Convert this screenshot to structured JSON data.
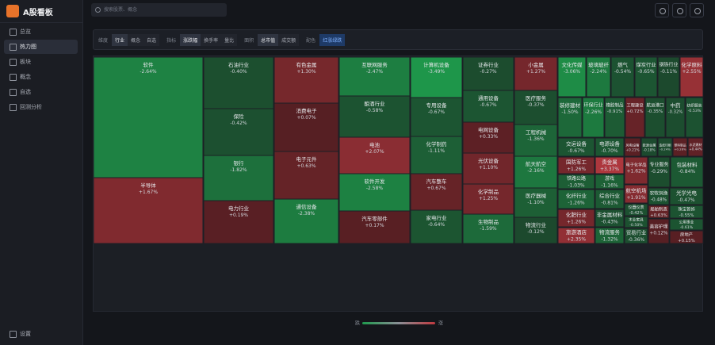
{
  "app": {
    "title": "A股看板"
  },
  "search": {
    "placeholder": "搜索股票、概念"
  },
  "sidebar": {
    "items": [
      "总览",
      "热力图",
      "板块",
      "概念",
      "自选",
      "回测分析"
    ],
    "settings": "设置"
  },
  "toolbar": {
    "groups": [
      {
        "label": "维度",
        "options": [
          "行业",
          "概念",
          "自选"
        ]
      },
      {
        "label": "指标",
        "options": [
          "涨跌幅",
          "换手率",
          "量比"
        ]
      },
      {
        "label": "面积",
        "options": [
          "总市值",
          "成交额"
        ]
      },
      {
        "label": "配色",
        "options": [
          "红涨绿跌"
        ]
      }
    ]
  },
  "chart_data": {
    "type": "treemap",
    "categories": [
      "软件",
      "半导体",
      "石油行业",
      "保险",
      "银行",
      "电力行业",
      "有色金属",
      "消费电子",
      "电子元件",
      "通信设备",
      "互联网服务",
      "酿酒行业",
      "电池",
      "软件开发",
      "汽车零部件",
      "计算机设备",
      "专用设备",
      "化学制药",
      "汽车整车",
      "家电行业",
      "证券行业",
      "通用设备",
      "电网设备",
      "光伏设备",
      "化学制品",
      "生物制品",
      "小金属",
      "医疗服务",
      "工程机械",
      "航天航空",
      "医疗器械",
      "物流行业",
      "文化传媒",
      "玻璃玻纤",
      "燃气",
      "煤炭行业",
      "钢铁行业",
      "化学原料",
      "装修建材",
      "环保行业",
      "橡胶制品",
      "工程建设",
      "航运港口",
      "中药",
      "纺织服装",
      "交运设备",
      "电源设备",
      "风电设备",
      "能源金属",
      "造纸印刷",
      "塑料制品",
      "水泥建材",
      "国防军工",
      "贵金属",
      "铁路公路",
      "游戏",
      "化纤行业",
      "综合行业",
      "化肥行业",
      "非金属材料",
      "旅游酒店",
      "物流服务",
      "电子化学品",
      "航空机场",
      "仪器仪表",
      "木业家具",
      "贸易行业",
      "农牧饲渔",
      "船舶制造",
      "美容护理",
      "专业服务",
      "包装材料",
      "光学光电",
      "珠宝首饰",
      "公用事业",
      "房地产"
    ],
    "values": [
      -2.64,
      1.67,
      -0.4,
      -0.42,
      -1.82,
      0.19,
      1.3,
      0.07,
      0.63,
      -2.38,
      -2.47,
      -0.58,
      2.07,
      -2.58,
      0.17,
      -3.49,
      -0.67,
      -1.11,
      0.67,
      -0.64,
      -0.27,
      -0.67,
      0.33,
      1.1,
      1.25,
      -1.59,
      1.27,
      -0.37,
      -1.36,
      -2.16,
      -1.1,
      -0.12,
      -3.06,
      -2.24,
      -0.54,
      -0.65,
      -0.11,
      2.55,
      -1.5,
      -2.26,
      -0.91,
      0.72,
      -0.35,
      -0.32,
      -0.53,
      -0.67,
      -0.7,
      0.21,
      -0.18,
      -0.24,
      0.26,
      0.44,
      1.26,
      3.37,
      -1.03,
      -1.16,
      -1.26,
      -0.81,
      1.26,
      -0.43,
      2.35,
      -1.32,
      1.62,
      1.91,
      -0.42,
      -0.5,
      -0.36,
      -0.48,
      0.63,
      0.12,
      -0.29,
      -0.84,
      -0.47,
      -0.55,
      -0.61,
      0.15
    ],
    "value_labels": [
      "-2.64%",
      "+1.67%",
      "-0.40%",
      "-0.42%",
      "-1.82%",
      "+0.19%",
      "+1.30%",
      "+0.07%",
      "+0.63%",
      "-2.38%",
      "-2.47%",
      "-0.58%",
      "+2.07%",
      "-2.58%",
      "+0.17%",
      "-3.49%",
      "-0.67%",
      "-1.11%",
      "+0.67%",
      "-0.64%",
      "-0.27%",
      "-0.67%",
      "+0.33%",
      "+1.10%",
      "+1.25%",
      "-1.59%",
      "+1.27%",
      "-0.37%",
      "-1.36%",
      "-2.16%",
      "-1.10%",
      "-0.12%",
      "-3.06%",
      "-2.24%",
      "-0.54%",
      "-0.65%",
      "-0.11%",
      "+2.55%",
      "-1.50%",
      "-2.26%",
      "-0.91%",
      "+0.72%",
      "-0.35%",
      "-0.32%",
      "-0.53%",
      "-0.67%",
      "-0.70%",
      "+0.21%",
      "-0.18%",
      "-0.24%",
      "+0.26%",
      "+0.44%",
      "+1.26%",
      "+3.37%",
      "-1.03%",
      "-1.16%",
      "-1.26%",
      "-0.81%",
      "+1.26%",
      "-0.43%",
      "+2.35%",
      "-1.32%",
      "+1.62%",
      "+1.91%",
      "-0.42%",
      "-0.50%",
      "-0.36%",
      "-0.48%",
      "+0.63%",
      "+0.12%",
      "-0.29%",
      "-0.84%",
      "-0.47%",
      "-0.55%",
      "-0.61%",
      "+0.15%"
    ]
  },
  "legend": {
    "low": "跌",
    "high": "涨"
  }
}
